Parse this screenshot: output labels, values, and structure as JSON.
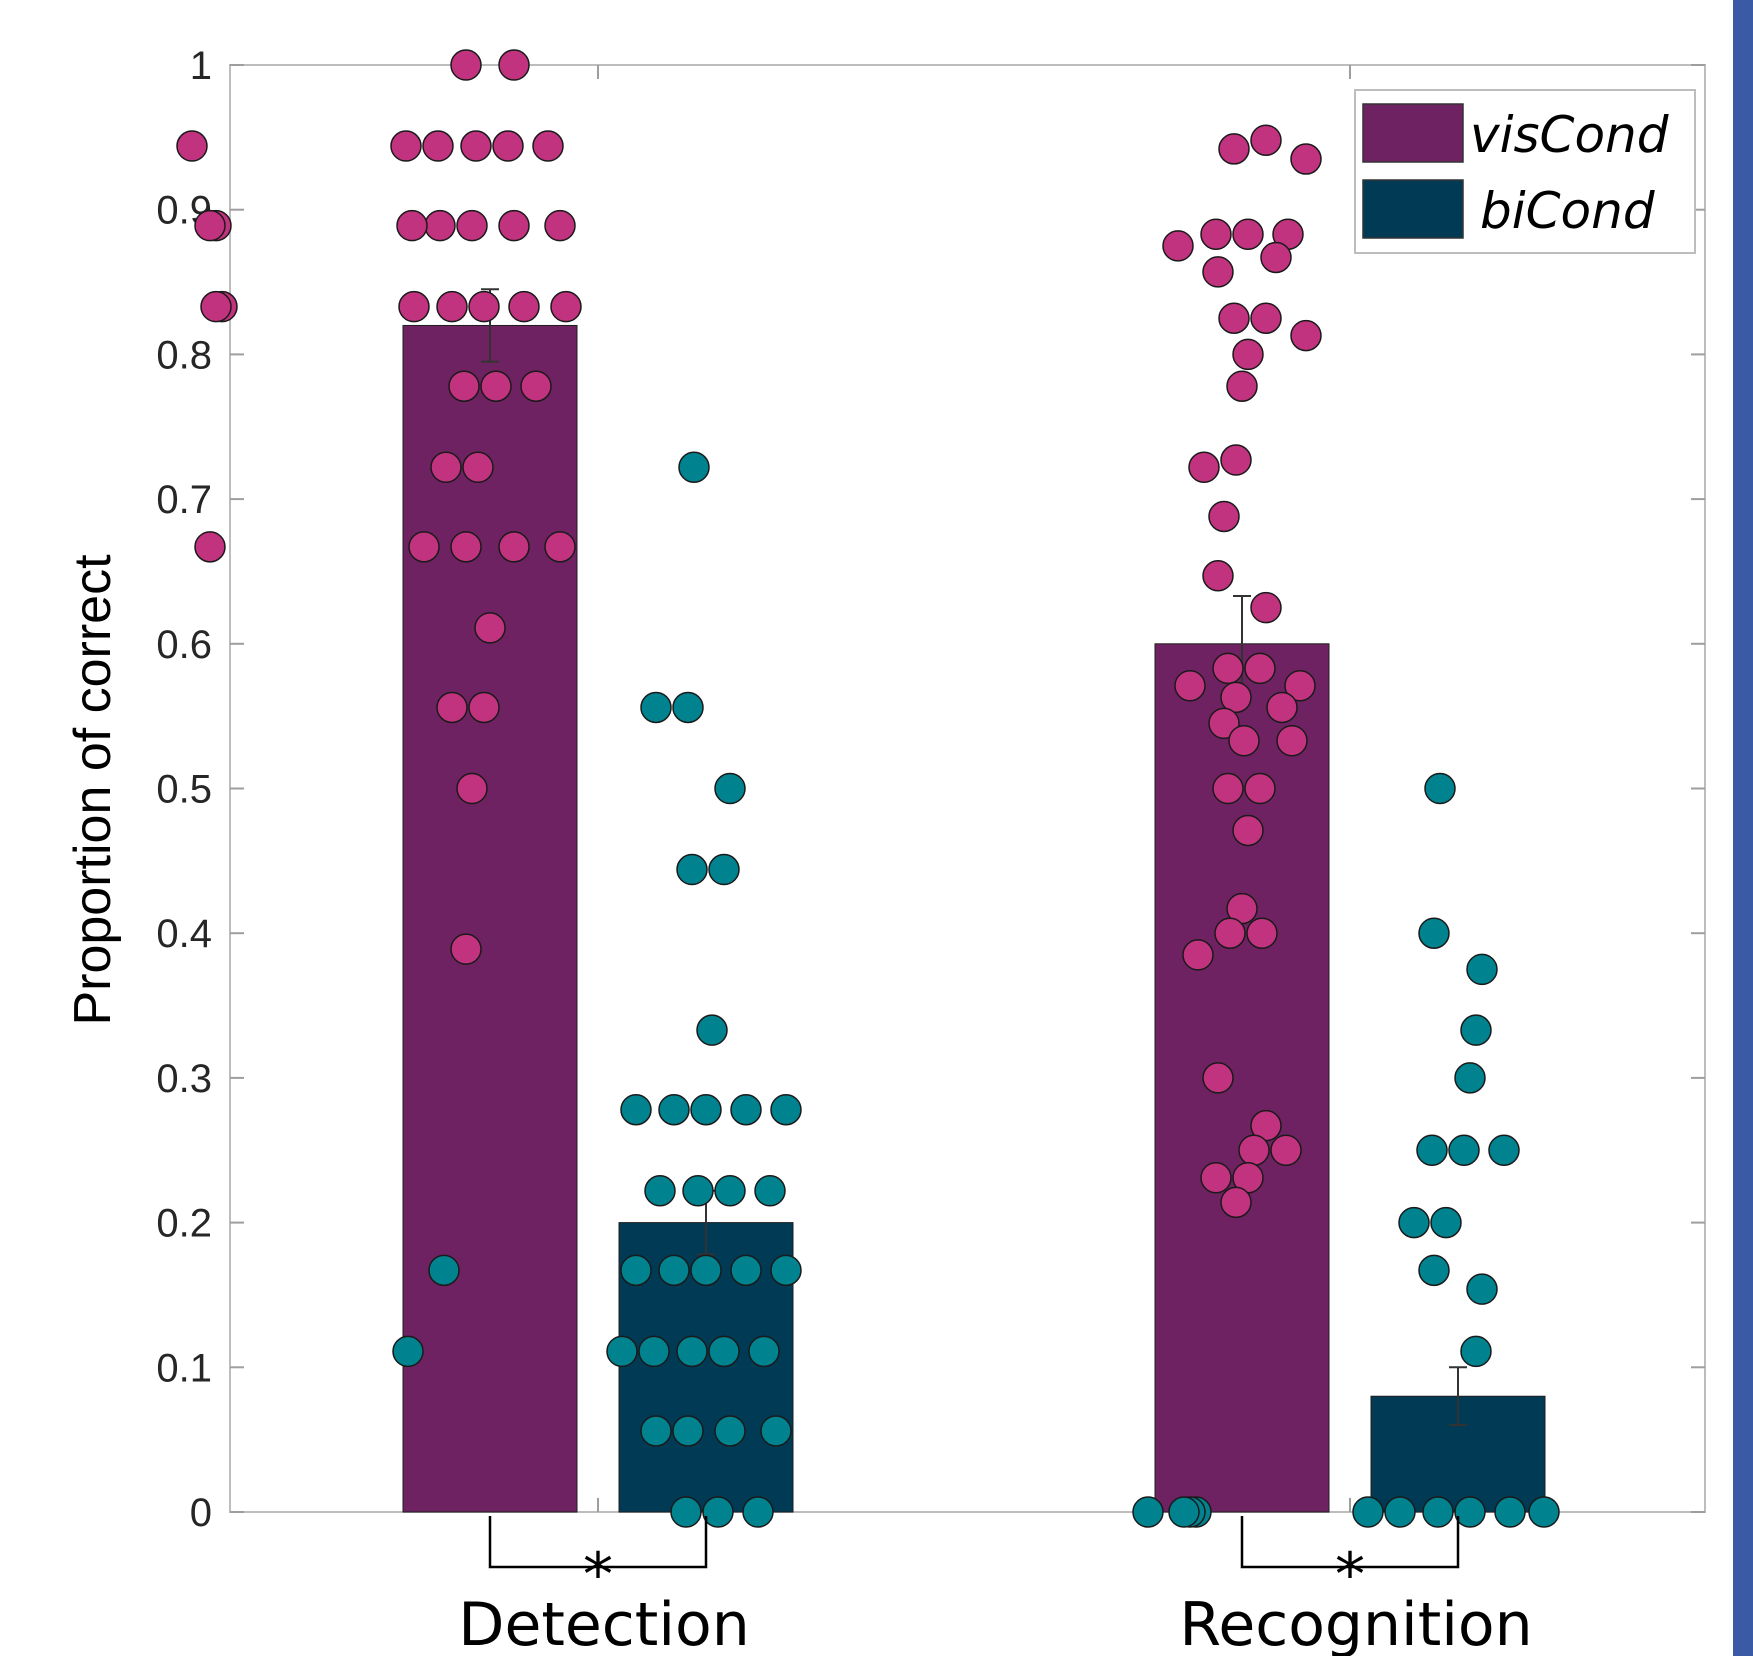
{
  "chart_data": {
    "type": "bar",
    "categories": [
      "Detection",
      "Recognition"
    ],
    "ylabel": "Proportion of correct",
    "xlabel": "",
    "ylim": [
      0,
      1
    ],
    "yticks": [
      0,
      0.1,
      0.2,
      0.3,
      0.4,
      0.5,
      0.6,
      0.7,
      0.8,
      0.9,
      1
    ],
    "ytick_labels": [
      "0",
      "0.1",
      "0.2",
      "0.3",
      "0.4",
      "0.5",
      "0.6",
      "0.7",
      "0.8",
      "0.9",
      "1"
    ],
    "grid": false,
    "legend_position": "top-right",
    "series": [
      {
        "name": "visCond",
        "color": "#6e2262",
        "point_color": "#c2337f",
        "values": [
          0.82,
          0.6
        ],
        "errors": [
          0.025,
          0.033
        ],
        "points": [
          [
            1.0,
            1.0,
            0.944,
            0.944,
            0.944,
            0.944,
            0.944,
            0.944,
            0.889,
            0.889,
            0.889,
            0.889,
            0.889,
            0.889,
            0.889,
            0.833,
            0.833,
            0.833,
            0.833,
            0.833,
            0.833,
            0.833,
            0.778,
            0.778,
            0.778,
            0.722,
            0.722,
            0.667,
            0.667,
            0.667,
            0.667,
            0.667,
            0.611,
            0.556,
            0.556,
            0.5,
            0.389
          ],
          [
            0.948,
            0.942,
            0.935,
            0.883,
            0.883,
            0.883,
            0.875,
            0.867,
            0.857,
            0.825,
            0.825,
            0.813,
            0.8,
            0.778,
            0.727,
            0.722,
            0.688,
            0.647,
            0.625,
            0.583,
            0.583,
            0.571,
            0.571,
            0.563,
            0.556,
            0.545,
            0.533,
            0.533,
            0.5,
            0.5,
            0.471,
            0.417,
            0.4,
            0.4,
            0.385,
            0.3,
            0.267,
            0.25,
            0.25,
            0.231,
            0.231,
            0.214
          ]
        ]
      },
      {
        "name": "biCond",
        "color": "#003a55",
        "point_color": "#00838f",
        "values": [
          0.2,
          0.08
        ],
        "errors": [
          0.022,
          0.02
        ],
        "points": [
          [
            0.722,
            0.556,
            0.556,
            0.5,
            0.444,
            0.444,
            0.333,
            0.278,
            0.278,
            0.278,
            0.278,
            0.278,
            0.222,
            0.222,
            0.222,
            0.222,
            0.167,
            0.167,
            0.167,
            0.167,
            0.167,
            0.167,
            0.111,
            0.111,
            0.111,
            0.111,
            0.111,
            0.111,
            0.056,
            0.056,
            0.056,
            0.056,
            0.0,
            0.0,
            0.0
          ],
          [
            0.5,
            0.4,
            0.375,
            0.333,
            0.3,
            0.25,
            0.25,
            0.25,
            0.2,
            0.2,
            0.167,
            0.154,
            0.111,
            0.0,
            0.0,
            0.0,
            0.0,
            0.0,
            0.0,
            0.0,
            0.0,
            0.0,
            0.0
          ]
        ]
      }
    ],
    "significance": [
      "*",
      "*"
    ]
  }
}
